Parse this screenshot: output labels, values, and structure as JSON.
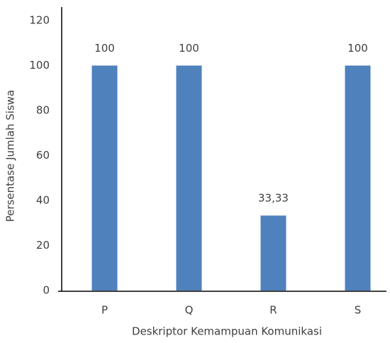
{
  "chart_data": {
    "type": "bar",
    "categories": [
      "P",
      "Q",
      "R",
      "S"
    ],
    "values": [
      100,
      100,
      33.33,
      100
    ],
    "value_labels": [
      "100",
      "100",
      "33,33",
      "100"
    ],
    "color": "#4f81bd",
    "xlabel": "Deskriptor Kemampuan Komunikasi",
    "ylabel": "Persentase Jumlah Siswa",
    "ylim": [
      0,
      120
    ],
    "yticks": [
      0,
      20,
      40,
      60,
      80,
      100,
      120
    ],
    "grid": false
  }
}
